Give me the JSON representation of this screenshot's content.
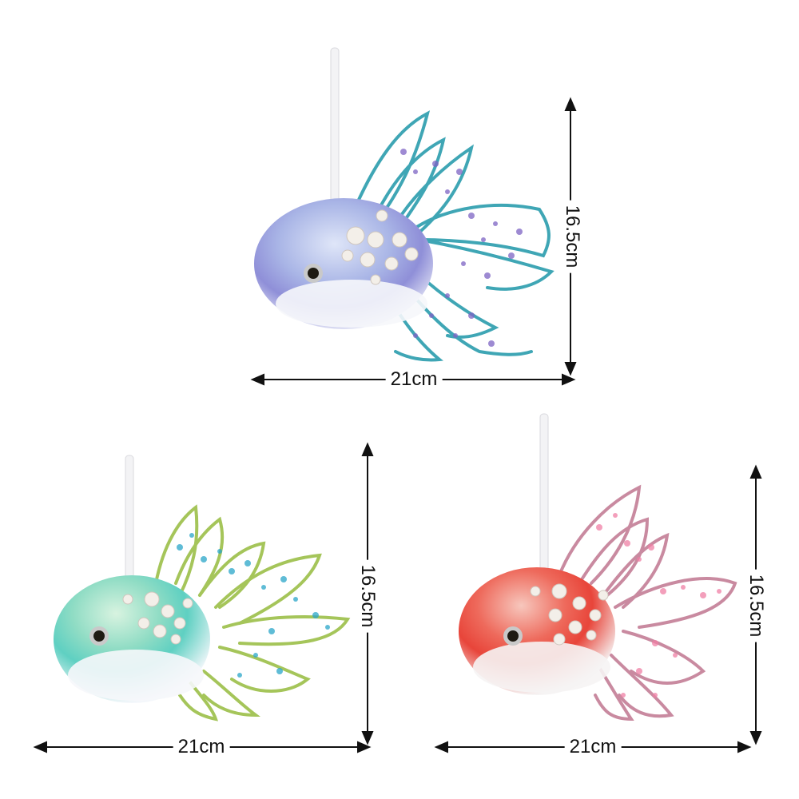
{
  "products": [
    {
      "id": "purple-blue",
      "width_label": "21cm",
      "height_label": "16.5cm",
      "colors": {
        "body_top": "#8f8fd8",
        "body_mid": "#b7c4ec",
        "fin": "#3fa6b5",
        "spots": "#7d63c4"
      }
    },
    {
      "id": "green-teal",
      "width_label": "21cm",
      "height_label": "16.5cm",
      "colors": {
        "body_top": "#5fd0c2",
        "body_mid": "#a8e6a0",
        "fin": "#a5c55a",
        "spots": "#2aa6c9"
      }
    },
    {
      "id": "red-pink",
      "width_label": "21cm",
      "height_label": "16.5cm",
      "colors": {
        "body_top": "#e8453a",
        "body_mid": "#f29a8c",
        "fin": "#c98aa0",
        "spots": "#f07fa5"
      }
    }
  ]
}
